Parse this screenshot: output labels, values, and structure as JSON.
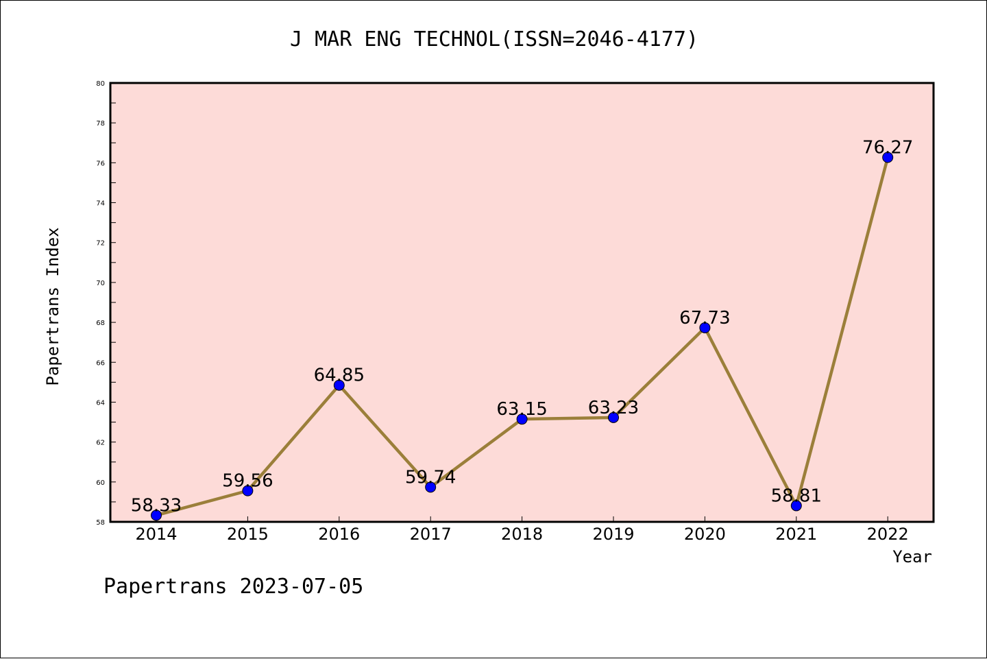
{
  "chart_data": {
    "type": "line",
    "title": "J MAR ENG TECHNOL(ISSN=2046-4177)",
    "xlabel": "Year",
    "ylabel": "Papertrans Index",
    "categories": [
      "2014",
      "2015",
      "2016",
      "2017",
      "2018",
      "2019",
      "2020",
      "2021",
      "2022"
    ],
    "values": [
      58.33,
      59.56,
      64.85,
      59.74,
      63.15,
      63.23,
      67.73,
      58.81,
      76.27
    ],
    "data_labels": [
      "58.33",
      "59.56",
      "64.85",
      "59.74",
      "63.15",
      "63.23",
      "67.73",
      "58.81",
      "76.27"
    ],
    "ylim": [
      58,
      80
    ],
    "yticks": [
      58,
      60,
      62,
      64,
      66,
      68,
      70,
      72,
      74,
      76,
      78,
      80
    ],
    "grid": false,
    "footer": "Papertrans 2023-07-05",
    "colors": {
      "plot_background": "#fddbd8",
      "line": "#9b7f3a",
      "marker": "#0000ff",
      "axis": "#000000"
    }
  }
}
